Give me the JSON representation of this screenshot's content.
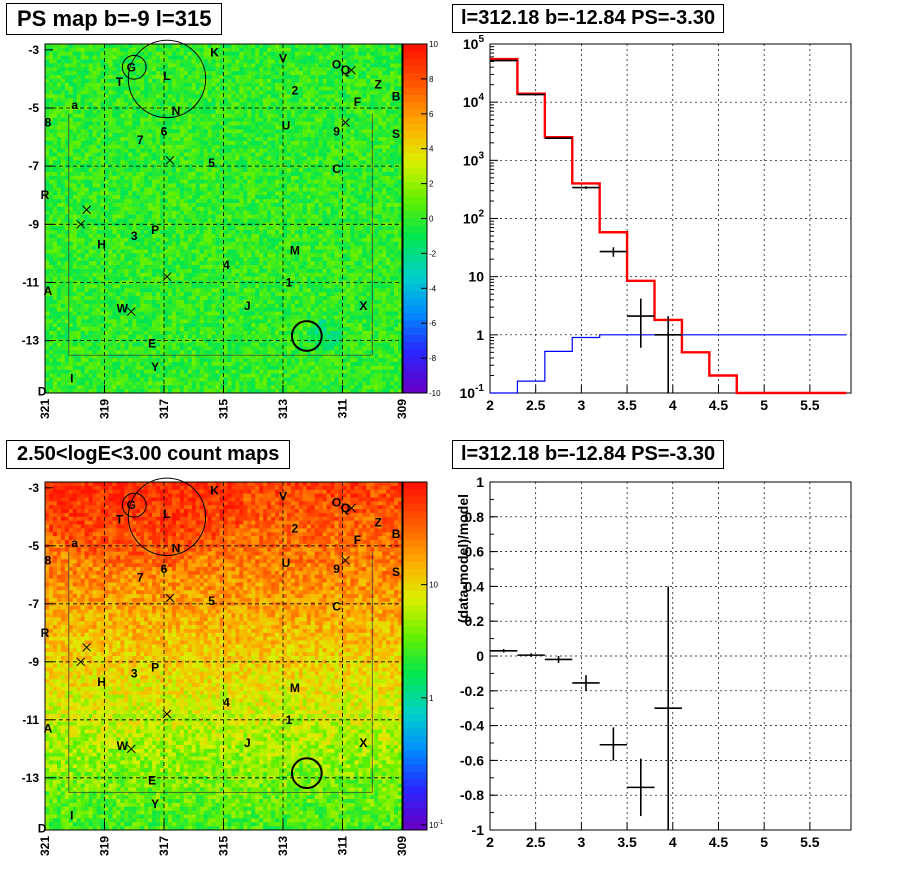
{
  "panels": {
    "ps_map_title": "PS map b=-9 l=315",
    "spectrum_title": "l=312.18 b=-12.84 PS=-3.30",
    "count_map_title": "2.50<logE<3.00 count maps",
    "residual_title": "l=312.18 b=-12.84 PS=-3.30"
  },
  "colors": {
    "data": "#000000",
    "model": "#ff0000",
    "background_model": "#0000ff"
  },
  "chart_data": [
    {
      "type": "heatmap",
      "title": "PS map b=-9 l=315",
      "x_ticks": [
        "321",
        "319",
        "317",
        "315",
        "313",
        "311",
        "309"
      ],
      "y_ticks": [
        "-3",
        "-5",
        "-7",
        "-9",
        "-11",
        "-13"
      ],
      "xlim": [
        321,
        309
      ],
      "ylim": [
        -14.8,
        -2.8
      ],
      "colorbar": {
        "min": -10,
        "max": 10,
        "ticks": [
          "10",
          "8",
          "6",
          "4",
          "2",
          "0",
          "-2",
          "-4",
          "-6",
          "-8",
          "-10"
        ]
      },
      "labels": [
        "G",
        "K",
        "V",
        "O",
        "Q",
        "L",
        "T",
        "2",
        "Z",
        "a",
        "N",
        "F",
        "B",
        "8",
        "7",
        "6",
        "U",
        "9",
        "S",
        "5",
        "C",
        "R",
        "H",
        "3",
        "P",
        "4",
        "M",
        "1",
        "A",
        "W",
        "J",
        "X",
        "E",
        "I",
        "Y",
        "D"
      ],
      "circles": [
        {
          "l": 318.0,
          "b": -3.6,
          "r": 0.4
        },
        {
          "l": 316.9,
          "b": -4.0,
          "r": 1.3
        },
        {
          "l": 312.2,
          "b": -12.84,
          "r": 0.5
        }
      ]
    },
    {
      "type": "histogram",
      "title": "l=312.18 b=-12.84 PS=-3.30",
      "x_ticks": [
        "2",
        "2.5",
        "3",
        "3.5",
        "4",
        "4.5",
        "5",
        "5.5"
      ],
      "y_ticks": [
        "10^5",
        "10^4",
        "10^3",
        "10^2",
        "10",
        "1",
        "10^-1"
      ],
      "xlim": [
        2,
        5.95
      ],
      "ylim": [
        0.1,
        100000
      ],
      "log_y": true,
      "bin_edges": [
        2.0,
        2.3,
        2.6,
        2.9,
        3.2,
        3.5,
        3.8,
        4.1,
        4.4,
        4.7,
        5.0,
        5.3,
        5.6,
        5.9
      ],
      "series": [
        {
          "name": "",
          "color": "#ff0000",
          "values": [
            55000,
            14000,
            2500,
            400,
            58,
            8.5,
            1.8,
            0.5,
            0.2,
            0.1,
            0.1,
            0.1,
            0.1
          ]
        },
        {
          "name": "",
          "color": "#0000ff",
          "values": [
            0.1,
            0.16,
            0.52,
            0.9,
            1.0,
            1.0,
            1.0,
            1.0,
            1.0,
            1.0,
            1.0,
            1.0,
            1.0
          ]
        }
      ],
      "data_points": [
        {
          "x": 2.15,
          "y": 52000,
          "xerr": 0.15,
          "ylo": 51800,
          "yhi": 52200
        },
        {
          "x": 2.45,
          "y": 13500,
          "xerr": 0.15,
          "ylo": 13300,
          "yhi": 13700
        },
        {
          "x": 2.75,
          "y": 2400,
          "xerr": 0.15,
          "ylo": 2350,
          "yhi": 2450
        },
        {
          "x": 3.05,
          "y": 340,
          "xerr": 0.15,
          "ylo": 322,
          "yhi": 358
        },
        {
          "x": 3.35,
          "y": 27,
          "xerr": 0.15,
          "ylo": 22,
          "yhi": 32
        },
        {
          "x": 3.65,
          "y": 2.1,
          "xerr": 0.15,
          "ylo": 0.6,
          "yhi": 4.2
        },
        {
          "x": 3.95,
          "y": 1.0,
          "xerr": 0.15,
          "ylo": 0.1,
          "yhi": 2.1
        }
      ]
    },
    {
      "type": "heatmap",
      "title": "2.50<logE<3.00 count maps",
      "x_ticks": [
        "321",
        "319",
        "317",
        "315",
        "313",
        "311",
        "309"
      ],
      "y_ticks": [
        "-3",
        "-5",
        "-7",
        "-9",
        "-11",
        "-13"
      ],
      "xlim": [
        321,
        309
      ],
      "ylim": [
        -14.8,
        -2.8
      ],
      "colorbar": {
        "log": true,
        "ticks": [
          "10",
          "1",
          "10^-1"
        ]
      },
      "labels": [
        "G",
        "K",
        "V",
        "O",
        "Q",
        "L",
        "T",
        "2",
        "Z",
        "a",
        "N",
        "F",
        "B",
        "8",
        "7",
        "6",
        "U",
        "9",
        "S",
        "5",
        "C",
        "R",
        "H",
        "3",
        "P",
        "4",
        "M",
        "1",
        "A",
        "W",
        "J",
        "X",
        "E",
        "I",
        "Y",
        "D"
      ],
      "circles": [
        {
          "l": 318.0,
          "b": -3.6,
          "r": 0.4
        },
        {
          "l": 316.9,
          "b": -4.0,
          "r": 1.3
        },
        {
          "l": 312.2,
          "b": -12.84,
          "r": 0.5
        }
      ]
    },
    {
      "type": "scatter",
      "title": "l=312.18 b=-12.84 PS=-3.30",
      "ylabel": "(data-model)/model",
      "x_ticks": [
        "2",
        "2.5",
        "3",
        "3.5",
        "4",
        "4.5",
        "5",
        "5.5"
      ],
      "y_ticks": [
        "1",
        "0.8",
        "0.6",
        "0.4",
        "0.2",
        "0",
        "-0.2",
        "-0.4",
        "-0.6",
        "-0.8",
        "-1"
      ],
      "xlim": [
        2,
        5.95
      ],
      "ylim": [
        -1,
        1
      ],
      "data_points": [
        {
          "x": 2.15,
          "y": 0.03,
          "xerr": 0.15,
          "ylo": 0.02,
          "yhi": 0.04
        },
        {
          "x": 2.45,
          "y": 0.005,
          "xerr": 0.15,
          "ylo": -0.005,
          "yhi": 0.015
        },
        {
          "x": 2.75,
          "y": -0.02,
          "xerr": 0.15,
          "ylo": -0.04,
          "yhi": 0.0
        },
        {
          "x": 3.05,
          "y": -0.155,
          "xerr": 0.15,
          "ylo": -0.2,
          "yhi": -0.11
        },
        {
          "x": 3.35,
          "y": -0.51,
          "xerr": 0.15,
          "ylo": -0.6,
          "yhi": -0.41
        },
        {
          "x": 3.65,
          "y": -0.755,
          "xerr": 0.15,
          "ylo": -0.92,
          "yhi": -0.59
        },
        {
          "x": 3.95,
          "y": -0.3,
          "xerr": 0.15,
          "ylo": -1.0,
          "yhi": 0.4
        }
      ]
    }
  ]
}
